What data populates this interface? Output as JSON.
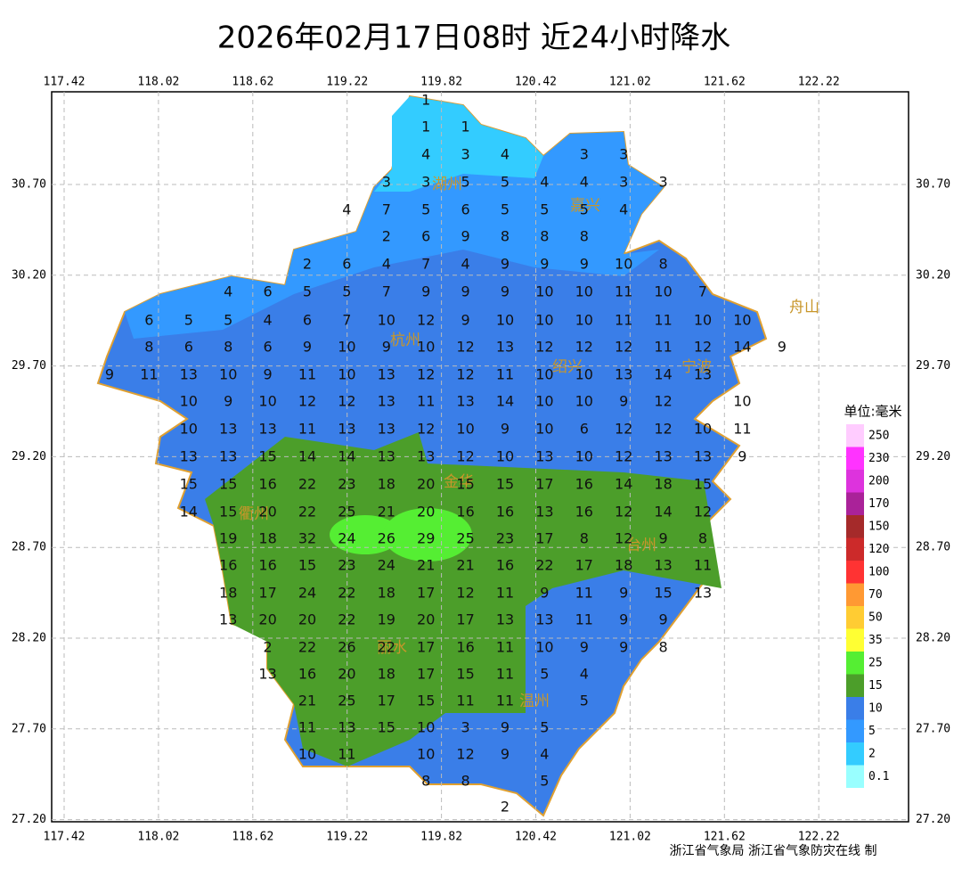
{
  "title": "2026年02月17日08时 近24小时降水",
  "footer": "浙江省气象局 浙江省气象防灾在线 制",
  "lon_ticks": [
    117.42,
    118.02,
    118.62,
    119.22,
    119.82,
    120.42,
    121.02,
    121.62,
    122.22
  ],
  "lat_ticks": [
    {
      "value": 30.7,
      "label": "30.70"
    },
    {
      "value": 30.2,
      "label": "30.20"
    },
    {
      "value": 29.7,
      "label": "29.70"
    },
    {
      "value": 29.2,
      "label": "29.20"
    },
    {
      "value": 28.7,
      "label": "28.70"
    },
    {
      "value": 28.2,
      "label": "28.20"
    },
    {
      "value": 27.7,
      "label": "27.70"
    },
    {
      "value": 27.2,
      "label": "27.20"
    }
  ],
  "legend": {
    "title": "单位:毫米",
    "levels": [
      {
        "value": 250,
        "color": "#ffccff"
      },
      {
        "value": 230,
        "color": "#ff33ff"
      },
      {
        "value": 200,
        "color": "#dd33dd"
      },
      {
        "value": 170,
        "color": "#aa2299"
      },
      {
        "value": 150,
        "color": "#a52a2a"
      },
      {
        "value": 120,
        "color": "#cc2a2a"
      },
      {
        "value": 100,
        "color": "#ff3333"
      },
      {
        "value": 70,
        "color": "#ff9933"
      },
      {
        "value": 50,
        "color": "#ffcc33"
      },
      {
        "value": 35,
        "color": "#ffff33"
      },
      {
        "value": 25,
        "color": "#55ee33"
      },
      {
        "value": 15,
        "color": "#4c9e2a"
      },
      {
        "value": 10,
        "color": "#3a7ee8"
      },
      {
        "value": 5,
        "color": "#3399ff"
      },
      {
        "value": 2,
        "color": "#33ccff"
      },
      {
        "value": 0.1,
        "color": "#99ffff"
      }
    ]
  },
  "cities": [
    "湖州",
    "嘉兴",
    "杭州",
    "绍兴",
    "宁波",
    "舟山",
    "金华",
    "衢州",
    "台州",
    "丽水",
    "温州"
  ],
  "station_rows": [
    [
      1
    ],
    [
      1,
      1
    ],
    [
      4,
      3,
      4,
      null,
      3,
      3
    ],
    [
      3,
      3,
      5,
      5,
      4,
      4,
      3,
      3
    ],
    [
      4,
      7,
      5,
      6,
      5,
      5,
      5,
      4
    ],
    [
      2,
      6,
      9,
      8,
      8,
      8
    ],
    [
      2,
      6,
      4,
      7,
      4,
      9,
      9,
      9,
      10,
      8
    ],
    [
      4,
      6,
      5,
      5,
      7,
      9,
      9,
      9,
      10,
      10,
      11,
      10,
      7
    ],
    [
      6,
      5,
      5,
      4,
      6,
      7,
      10,
      12,
      9,
      10,
      10,
      10,
      11,
      11,
      10,
      10
    ],
    [
      8,
      6,
      8,
      6,
      9,
      10,
      9,
      10,
      12,
      13,
      12,
      12,
      12,
      11,
      12,
      14,
      9
    ],
    [
      9,
      11,
      13,
      10,
      9,
      11,
      10,
      13,
      12,
      12,
      11,
      10,
      10,
      13,
      14,
      13
    ],
    [
      10,
      9,
      10,
      12,
      12,
      13,
      11,
      13,
      14,
      10,
      10,
      9,
      12,
      null,
      10
    ],
    [
      10,
      13,
      13,
      11,
      13,
      13,
      12,
      10,
      9,
      10,
      6,
      12,
      12,
      10,
      11
    ],
    [
      13,
      13,
      15,
      14,
      14,
      13,
      13,
      12,
      10,
      13,
      10,
      12,
      13,
      13,
      9
    ],
    [
      15,
      15,
      16,
      22,
      23,
      18,
      20,
      15,
      15,
      17,
      16,
      14,
      18,
      15
    ],
    [
      14,
      15,
      20,
      22,
      25,
      21,
      20,
      16,
      16,
      13,
      16,
      12,
      14,
      12
    ],
    [
      19,
      18,
      32,
      24,
      26,
      29,
      25,
      23,
      17,
      8,
      12,
      9,
      8
    ],
    [
      16,
      16,
      15,
      23,
      24,
      21,
      21,
      16,
      22,
      17,
      18,
      13,
      11
    ],
    [
      18,
      17,
      24,
      22,
      18,
      17,
      12,
      11,
      9,
      11,
      9,
      15,
      13
    ],
    [
      13,
      20,
      20,
      22,
      19,
      20,
      17,
      13,
      13,
      11,
      9,
      9
    ],
    [
      2,
      22,
      26,
      22,
      17,
      16,
      11,
      10,
      9,
      9,
      8
    ],
    [
      13,
      16,
      20,
      18,
      17,
      15,
      11,
      5,
      4
    ],
    [
      21,
      25,
      17,
      15,
      11,
      11,
      null,
      5
    ],
    [
      11,
      13,
      15,
      10,
      3,
      9,
      5
    ],
    [
      10,
      11,
      null,
      10,
      12,
      9,
      4
    ],
    [
      8,
      8,
      null,
      5
    ],
    [
      2
    ]
  ]
}
